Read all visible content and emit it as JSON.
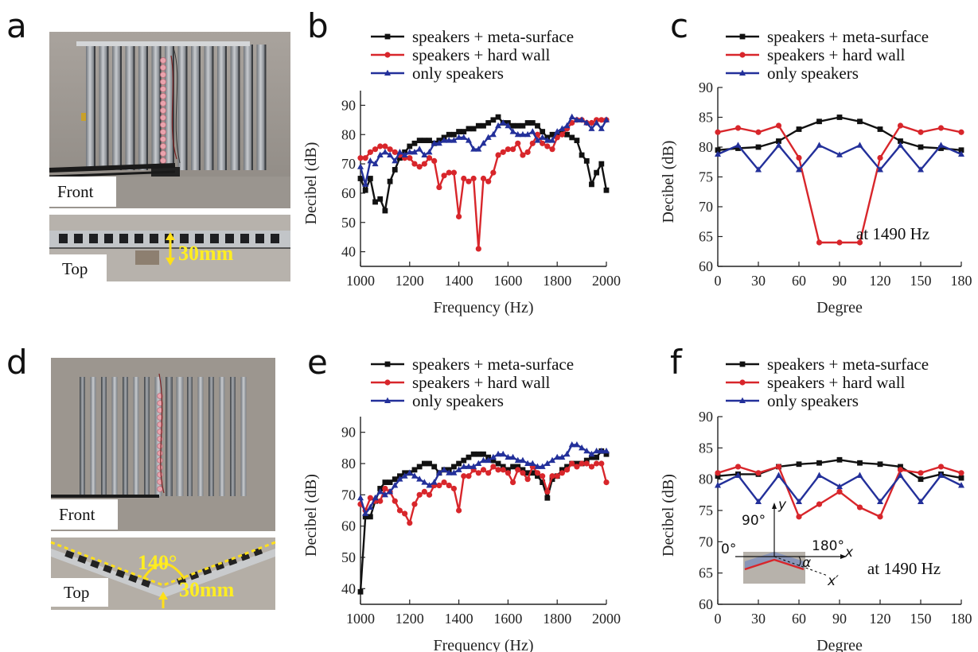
{
  "colors": {
    "speakers_meta": "#111111",
    "speakers_hard": "#d8262b",
    "only_speakers": "#23309a"
  },
  "photos": {
    "a": {
      "label": "a",
      "front": "Front",
      "top": "Top",
      "dim": "30mm"
    },
    "d": {
      "label": "d",
      "front": "Front",
      "top": "Top",
      "dim": "30mm",
      "angle": "140°"
    }
  },
  "inset": {
    "deg90": "90°",
    "deg0": "0°",
    "deg180": "180°",
    "y": "y",
    "x": "x",
    "xprime": "x′",
    "alpha": "α"
  },
  "chart_data": [
    {
      "id": "b",
      "panel_label": "b",
      "type": "line",
      "xlabel": "Frequency (Hz)",
      "ylabel": "Decibel (dB)",
      "xlim": [
        1000,
        2000
      ],
      "ylim": [
        35,
        95
      ],
      "xticks": [
        1000,
        1200,
        1400,
        1600,
        1800,
        2000
      ],
      "yticks": [
        40,
        50,
        60,
        70,
        80,
        90
      ],
      "annotation": "",
      "series": [
        {
          "name": "speakers + meta-surface",
          "marker": "square",
          "colorKey": "speakers_meta",
          "x": [
            1000,
            1020,
            1040,
            1060,
            1080,
            1100,
            1120,
            1140,
            1160,
            1180,
            1200,
            1220,
            1240,
            1260,
            1280,
            1300,
            1320,
            1340,
            1360,
            1380,
            1400,
            1420,
            1440,
            1460,
            1480,
            1500,
            1520,
            1540,
            1560,
            1580,
            1600,
            1620,
            1640,
            1660,
            1680,
            1700,
            1720,
            1740,
            1760,
            1780,
            1800,
            1820,
            1840,
            1860,
            1880,
            1900,
            1920,
            1940,
            1960,
            1980,
            2000
          ],
          "y": [
            65,
            61,
            65,
            57,
            58,
            54,
            64,
            68,
            72,
            74,
            76,
            77,
            78,
            78,
            78,
            77,
            78,
            79,
            80,
            80,
            81,
            81,
            82,
            82,
            83,
            83,
            84,
            85,
            86,
            84,
            84,
            83,
            83,
            83,
            84,
            84,
            83,
            81,
            79,
            80,
            80,
            81,
            80,
            79,
            78,
            73,
            71,
            63,
            67,
            70,
            61
          ]
        },
        {
          "name": "speakers + hard wall",
          "marker": "circle",
          "colorKey": "speakers_hard",
          "x": [
            1000,
            1020,
            1040,
            1060,
            1080,
            1100,
            1120,
            1140,
            1160,
            1180,
            1200,
            1220,
            1240,
            1260,
            1280,
            1300,
            1320,
            1340,
            1360,
            1380,
            1400,
            1420,
            1440,
            1460,
            1480,
            1500,
            1520,
            1540,
            1560,
            1580,
            1600,
            1620,
            1640,
            1660,
            1680,
            1700,
            1720,
            1740,
            1760,
            1780,
            1800,
            1820,
            1840,
            1860,
            1880,
            1900,
            1920,
            1940,
            1960,
            1980,
            2000
          ],
          "y": [
            72,
            72,
            74,
            75,
            76,
            76,
            75,
            74,
            73,
            72,
            72,
            70,
            69,
            70,
            72,
            71,
            62,
            66,
            67,
            67,
            52,
            65,
            64,
            65,
            41,
            65,
            64,
            67,
            73,
            74,
            75,
            75,
            77,
            73,
            74,
            77,
            80,
            77,
            76,
            75,
            79,
            80,
            82,
            84,
            85,
            85,
            84,
            84,
            85,
            85,
            85
          ]
        },
        {
          "name": "only speakers",
          "marker": "triangle",
          "colorKey": "only_speakers",
          "x": [
            1000,
            1020,
            1040,
            1060,
            1080,
            1100,
            1120,
            1140,
            1160,
            1180,
            1200,
            1220,
            1240,
            1260,
            1280,
            1300,
            1320,
            1340,
            1360,
            1380,
            1400,
            1420,
            1440,
            1460,
            1480,
            1500,
            1520,
            1540,
            1560,
            1580,
            1600,
            1620,
            1640,
            1660,
            1680,
            1700,
            1720,
            1740,
            1760,
            1780,
            1800,
            1820,
            1840,
            1860,
            1880,
            1900,
            1920,
            1940,
            1960,
            1980,
            2000
          ],
          "y": [
            69,
            63,
            71,
            70,
            73,
            74,
            73,
            71,
            74,
            73,
            74,
            74,
            75,
            73,
            74,
            77,
            77,
            78,
            78,
            78,
            79,
            79,
            78,
            75,
            75,
            77,
            79,
            80,
            83,
            84,
            83,
            81,
            80,
            80,
            80,
            81,
            78,
            79,
            78,
            78,
            81,
            82,
            83,
            86,
            85,
            85,
            84,
            82,
            84,
            82,
            85
          ]
        }
      ]
    },
    {
      "id": "c",
      "panel_label": "c",
      "type": "line",
      "xlabel": "Degree",
      "ylabel": "Decibel (dB)",
      "xlim": [
        0,
        180
      ],
      "ylim": [
        60,
        90
      ],
      "xticks": [
        0,
        30,
        60,
        90,
        120,
        150,
        180
      ],
      "yticks": [
        60,
        65,
        70,
        75,
        80,
        85,
        90
      ],
      "annotation": "at 1490 Hz",
      "series": [
        {
          "name": "speakers + meta-surface",
          "marker": "square",
          "colorKey": "speakers_meta",
          "x": [
            0,
            15,
            30,
            45,
            60,
            75,
            90,
            105,
            120,
            135,
            150,
            165,
            180
          ],
          "y": [
            79.5,
            79.8,
            80,
            81,
            83,
            84.3,
            85,
            84.3,
            83,
            81,
            80,
            79.8,
            79.5
          ]
        },
        {
          "name": "speakers + hard wall",
          "marker": "circle",
          "colorKey": "speakers_hard",
          "x": [
            0,
            15,
            30,
            45,
            60,
            75,
            90,
            105,
            120,
            135,
            150,
            165,
            180
          ],
          "y": [
            82.5,
            83.2,
            82.5,
            83.6,
            78.2,
            64,
            64,
            64,
            78.2,
            83.6,
            82.5,
            83.2,
            82.5
          ]
        },
        {
          "name": "only speakers",
          "marker": "triangle",
          "colorKey": "only_speakers",
          "x": [
            0,
            15,
            30,
            45,
            60,
            75,
            90,
            105,
            120,
            135,
            150,
            165,
            180
          ],
          "y": [
            78.8,
            80.3,
            76.2,
            80.3,
            76.2,
            80.3,
            78.7,
            80.3,
            76.2,
            80.3,
            76.2,
            80.3,
            78.8
          ]
        }
      ]
    },
    {
      "id": "e",
      "panel_label": "e",
      "type": "line",
      "xlabel": "Frequency (Hz)",
      "ylabel": "Decibel (dB)",
      "xlim": [
        1000,
        2000
      ],
      "ylim": [
        35,
        95
      ],
      "xticks": [
        1000,
        1200,
        1400,
        1600,
        1800,
        2000
      ],
      "yticks": [
        40,
        50,
        60,
        70,
        80,
        90
      ],
      "annotation": "",
      "series": [
        {
          "name": "speakers + meta-surface",
          "marker": "square",
          "colorKey": "speakers_meta",
          "x": [
            1000,
            1020,
            1040,
            1060,
            1080,
            1100,
            1120,
            1140,
            1160,
            1180,
            1200,
            1220,
            1240,
            1260,
            1280,
            1300,
            1320,
            1340,
            1360,
            1380,
            1400,
            1420,
            1440,
            1460,
            1480,
            1500,
            1520,
            1540,
            1560,
            1580,
            1600,
            1620,
            1640,
            1660,
            1680,
            1700,
            1720,
            1740,
            1760,
            1780,
            1800,
            1820,
            1840,
            1860,
            1880,
            1900,
            1920,
            1940,
            1960,
            1980,
            2000
          ],
          "y": [
            39,
            63,
            63,
            68,
            72,
            74,
            74,
            75,
            76,
            77,
            77,
            78,
            79,
            80,
            80,
            79,
            77,
            78,
            78,
            79,
            80,
            81,
            82,
            83,
            83,
            83,
            82,
            81,
            80,
            79,
            78,
            79,
            79,
            78,
            77,
            77,
            76,
            74,
            69,
            75,
            76,
            78,
            79,
            80,
            80,
            80,
            81,
            82,
            82,
            84,
            83
          ]
        },
        {
          "name": "speakers + hard wall",
          "marker": "circle",
          "colorKey": "speakers_hard",
          "x": [
            1000,
            1020,
            1040,
            1060,
            1080,
            1100,
            1120,
            1140,
            1160,
            1180,
            1200,
            1220,
            1240,
            1260,
            1280,
            1300,
            1320,
            1340,
            1360,
            1380,
            1400,
            1420,
            1440,
            1460,
            1480,
            1500,
            1520,
            1540,
            1560,
            1580,
            1600,
            1620,
            1640,
            1660,
            1680,
            1700,
            1720,
            1740,
            1760,
            1780,
            1800,
            1820,
            1840,
            1860,
            1880,
            1900,
            1920,
            1940,
            1960,
            1980,
            2000
          ],
          "y": [
            67,
            65,
            69,
            68,
            68,
            72,
            71,
            68,
            65,
            64,
            61,
            67,
            70,
            71,
            70,
            73,
            73,
            74,
            73,
            72,
            65,
            76,
            76,
            78,
            77,
            78,
            77,
            79,
            78,
            78,
            77,
            74,
            78,
            77,
            75,
            79,
            77,
            76,
            71,
            76,
            76,
            77,
            78,
            80,
            79,
            80,
            80,
            79,
            80,
            80,
            74
          ]
        },
        {
          "name": "only speakers",
          "marker": "triangle",
          "colorKey": "only_speakers",
          "x": [
            1000,
            1020,
            1040,
            1060,
            1080,
            1100,
            1120,
            1140,
            1160,
            1180,
            1200,
            1220,
            1240,
            1260,
            1280,
            1300,
            1320,
            1340,
            1360,
            1380,
            1400,
            1420,
            1440,
            1460,
            1480,
            1500,
            1520,
            1540,
            1560,
            1580,
            1600,
            1620,
            1640,
            1660,
            1680,
            1700,
            1720,
            1740,
            1760,
            1780,
            1800,
            1820,
            1840,
            1860,
            1880,
            1900,
            1920,
            1940,
            1960,
            1980,
            2000
          ],
          "y": [
            69,
            64,
            66,
            69,
            71,
            70,
            71,
            73,
            75,
            76,
            77,
            76,
            75,
            74,
            73,
            74,
            77,
            78,
            77,
            77,
            78,
            79,
            79,
            79,
            80,
            81,
            81,
            82,
            83,
            83,
            82,
            82,
            81,
            81,
            80,
            80,
            79,
            79,
            80,
            81,
            82,
            82,
            83,
            86,
            86,
            85,
            84,
            83,
            84,
            84,
            84
          ]
        }
      ]
    },
    {
      "id": "f",
      "panel_label": "f",
      "type": "line",
      "xlabel": "Degree",
      "ylabel": "Decibel (dB)",
      "xlim": [
        0,
        180
      ],
      "ylim": [
        60,
        90
      ],
      "xticks": [
        0,
        30,
        60,
        90,
        120,
        150,
        180
      ],
      "yticks": [
        60,
        65,
        70,
        75,
        80,
        85,
        90
      ],
      "annotation": "at 1490 Hz",
      "series": [
        {
          "name": "speakers + meta-surface",
          "marker": "square",
          "colorKey": "speakers_meta",
          "x": [
            0,
            15,
            30,
            45,
            60,
            75,
            90,
            105,
            120,
            135,
            150,
            165,
            180
          ],
          "y": [
            80.5,
            80.8,
            80.8,
            82,
            82.4,
            82.6,
            83.1,
            82.6,
            82.4,
            82,
            80,
            80.8,
            80.2
          ]
        },
        {
          "name": "speakers + hard wall",
          "marker": "circle",
          "colorKey": "speakers_hard",
          "x": [
            0,
            15,
            30,
            45,
            60,
            75,
            90,
            105,
            120,
            135,
            150,
            165,
            180
          ],
          "y": [
            81,
            82,
            81,
            82,
            74,
            76,
            78,
            75.5,
            74,
            81.5,
            81,
            82,
            81
          ]
        },
        {
          "name": "only speakers",
          "marker": "triangle",
          "colorKey": "only_speakers",
          "x": [
            0,
            15,
            30,
            45,
            60,
            75,
            90,
            105,
            120,
            135,
            150,
            165,
            180
          ],
          "y": [
            79,
            80.6,
            76.4,
            80.6,
            76.4,
            80.6,
            78.8,
            80.6,
            76.4,
            80.6,
            76.4,
            80.6,
            79
          ]
        }
      ]
    }
  ]
}
